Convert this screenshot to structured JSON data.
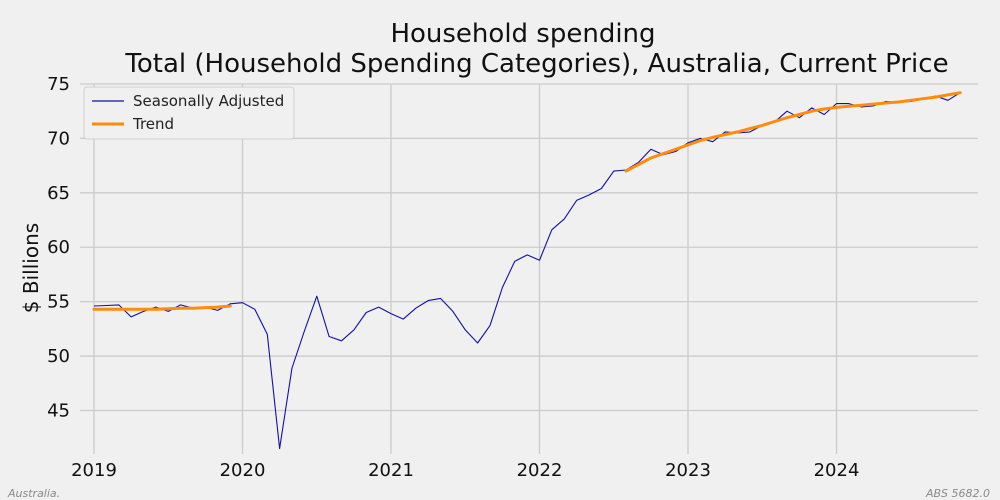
{
  "chart_data": {
    "type": "line",
    "title": "Household spending",
    "subtitle": "Total (Household Spending Categories), Australia, Current Price",
    "xlabel": "",
    "ylabel": "$ Billions",
    "ylim": [
      41,
      75
    ],
    "yticks": [
      45,
      50,
      55,
      60,
      65,
      70,
      75
    ],
    "xlim": [
      2018.95,
      2024.92
    ],
    "xticks": [
      {
        "value": 2019,
        "label": "2019"
      },
      {
        "value": 2020,
        "label": "2020"
      },
      {
        "value": 2021,
        "label": "2021"
      },
      {
        "value": 2022,
        "label": "2022"
      },
      {
        "value": 2023,
        "label": "2023"
      },
      {
        "value": 2024,
        "label": "2024"
      }
    ],
    "grid": true,
    "legend_position": "top-left",
    "series": [
      {
        "name": "Seasonally Adjusted",
        "color": "#1010a8",
        "x": [
          2019.0,
          2019.083,
          2019.167,
          2019.25,
          2019.333,
          2019.417,
          2019.5,
          2019.583,
          2019.667,
          2019.75,
          2019.833,
          2019.917,
          2020.0,
          2020.083,
          2020.167,
          2020.25,
          2020.333,
          2020.417,
          2020.5,
          2020.583,
          2020.667,
          2020.75,
          2020.833,
          2020.917,
          2021.0,
          2021.083,
          2021.167,
          2021.25,
          2021.333,
          2021.417,
          2021.5,
          2021.583,
          2021.667,
          2021.75,
          2021.833,
          2021.917,
          2022.0,
          2022.083,
          2022.167,
          2022.25,
          2022.333,
          2022.417,
          2022.5,
          2022.583,
          2022.667,
          2022.75,
          2022.833,
          2022.917,
          2023.0,
          2023.083,
          2023.167,
          2023.25,
          2023.333,
          2023.417,
          2023.5,
          2023.583,
          2023.667,
          2023.75,
          2023.833,
          2023.917,
          2024.0,
          2024.083,
          2024.167,
          2024.25,
          2024.333,
          2024.417,
          2024.5,
          2024.583,
          2024.667,
          2024.75,
          2024.833
        ],
        "values": [
          54.6,
          54.65,
          54.7,
          53.6,
          54.1,
          54.5,
          54.1,
          54.7,
          54.4,
          54.5,
          54.2,
          54.8,
          54.9,
          54.3,
          52.0,
          41.5,
          48.9,
          52.3,
          55.5,
          51.8,
          51.4,
          52.4,
          54.0,
          54.5,
          53.9,
          53.4,
          54.4,
          55.1,
          55.3,
          54.1,
          52.4,
          51.2,
          52.8,
          56.3,
          58.7,
          59.3,
          58.8,
          61.6,
          62.6,
          64.3,
          64.8,
          65.4,
          67.0,
          67.1,
          67.8,
          69.0,
          68.5,
          68.8,
          69.6,
          70.0,
          69.7,
          70.6,
          70.5,
          70.6,
          71.2,
          71.5,
          72.5,
          71.9,
          72.8,
          72.2,
          73.2,
          73.2,
          72.9,
          73.0,
          73.4,
          73.3,
          73.4,
          73.6,
          73.9,
          73.5,
          74.2
        ]
      },
      {
        "name": "Trend",
        "color": "#ff8c0a",
        "segments": [
          {
            "x": [
              2019.0,
              2019.083,
              2019.167,
              2019.25,
              2019.333,
              2019.417,
              2019.5,
              2019.583,
              2019.667,
              2019.75,
              2019.833,
              2019.917
            ],
            "values": [
              54.3,
              54.3,
              54.3,
              54.3,
              54.3,
              54.3,
              54.35,
              54.4,
              54.4,
              54.45,
              54.5,
              54.6
            ]
          },
          {
            "x": [
              2022.583,
              2022.667,
              2022.75,
              2022.833,
              2022.917,
              2023.0,
              2023.083,
              2023.167,
              2023.25,
              2023.333,
              2023.417,
              2023.5,
              2023.583,
              2023.667,
              2023.75,
              2023.833,
              2023.917,
              2024.0,
              2024.083,
              2024.167,
              2024.25,
              2024.333,
              2024.417,
              2024.5,
              2024.583,
              2024.667,
              2024.75,
              2024.833
            ],
            "values": [
              67.0,
              67.6,
              68.2,
              68.6,
              69.0,
              69.4,
              69.8,
              70.1,
              70.35,
              70.6,
              70.9,
              71.2,
              71.55,
              71.9,
              72.2,
              72.5,
              72.7,
              72.85,
              72.95,
              73.05,
              73.15,
              73.25,
              73.35,
              73.5,
              73.65,
              73.8,
              74.0,
              74.2
            ]
          }
        ]
      }
    ]
  },
  "footer": {
    "left_note": "Australia.",
    "right_note": "ABS 5682.0"
  }
}
